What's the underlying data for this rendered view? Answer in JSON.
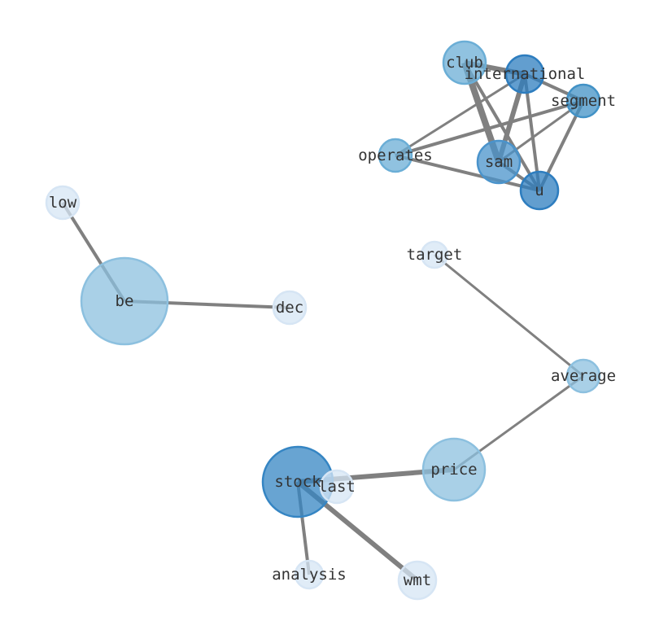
{
  "graph": {
    "nodes": [
      {
        "id": "club",
        "label": "club",
        "color": "#6baed6"
      },
      {
        "id": "international",
        "label": "international",
        "color": "#2d7dbf"
      },
      {
        "id": "segment",
        "label": "segment",
        "color": "#4292c6"
      },
      {
        "id": "operates",
        "label": "operates",
        "color": "#6baed6"
      },
      {
        "id": "sam",
        "label": "sam",
        "color": "#4a93cb"
      },
      {
        "id": "u",
        "label": "u",
        "color": "#2d7dbf"
      },
      {
        "id": "low",
        "label": "low",
        "color": "#d6e5f4"
      },
      {
        "id": "be",
        "label": "be",
        "color": "#8cc0df"
      },
      {
        "id": "dec",
        "label": "dec",
        "color": "#d6e5f4"
      },
      {
        "id": "target",
        "label": "target",
        "color": "#d6e5f4"
      },
      {
        "id": "average",
        "label": "average",
        "color": "#8cc0df"
      },
      {
        "id": "price",
        "label": "price",
        "color": "#8cc0df"
      },
      {
        "id": "stock",
        "label": "stock",
        "color": "#3585c3"
      },
      {
        "id": "last",
        "label": "last",
        "color": "#d6e5f4"
      },
      {
        "id": "analysis",
        "label": "analysis",
        "color": "#d6e5f4"
      },
      {
        "id": "wmt",
        "label": "wmt",
        "color": "#d6e5f4"
      }
    ],
    "edges": [
      {
        "source": "club",
        "target": "international",
        "weight": 3
      },
      {
        "source": "club",
        "target": "sam",
        "weight": 4
      },
      {
        "source": "club",
        "target": "u",
        "weight": 2
      },
      {
        "source": "international",
        "target": "operates",
        "weight": 1.5
      },
      {
        "source": "international",
        "target": "sam",
        "weight": 3
      },
      {
        "source": "international",
        "target": "u",
        "weight": 2
      },
      {
        "source": "international",
        "target": "segment",
        "weight": 2
      },
      {
        "source": "segment",
        "target": "operates",
        "weight": 2
      },
      {
        "source": "segment",
        "target": "sam",
        "weight": 1.5
      },
      {
        "source": "segment",
        "target": "u",
        "weight": 2
      },
      {
        "source": "operates",
        "target": "u",
        "weight": 2
      },
      {
        "source": "sam",
        "target": "u",
        "weight": 2
      },
      {
        "source": "low",
        "target": "be",
        "weight": 2
      },
      {
        "source": "be",
        "target": "dec",
        "weight": 2
      },
      {
        "source": "target",
        "target": "average",
        "weight": 1.5
      },
      {
        "source": "average",
        "target": "price",
        "weight": 1.5
      },
      {
        "source": "stock",
        "target": "price",
        "weight": 3
      },
      {
        "source": "stock",
        "target": "wmt",
        "weight": 3
      },
      {
        "source": "stock",
        "target": "analysis",
        "weight": 2
      }
    ]
  }
}
